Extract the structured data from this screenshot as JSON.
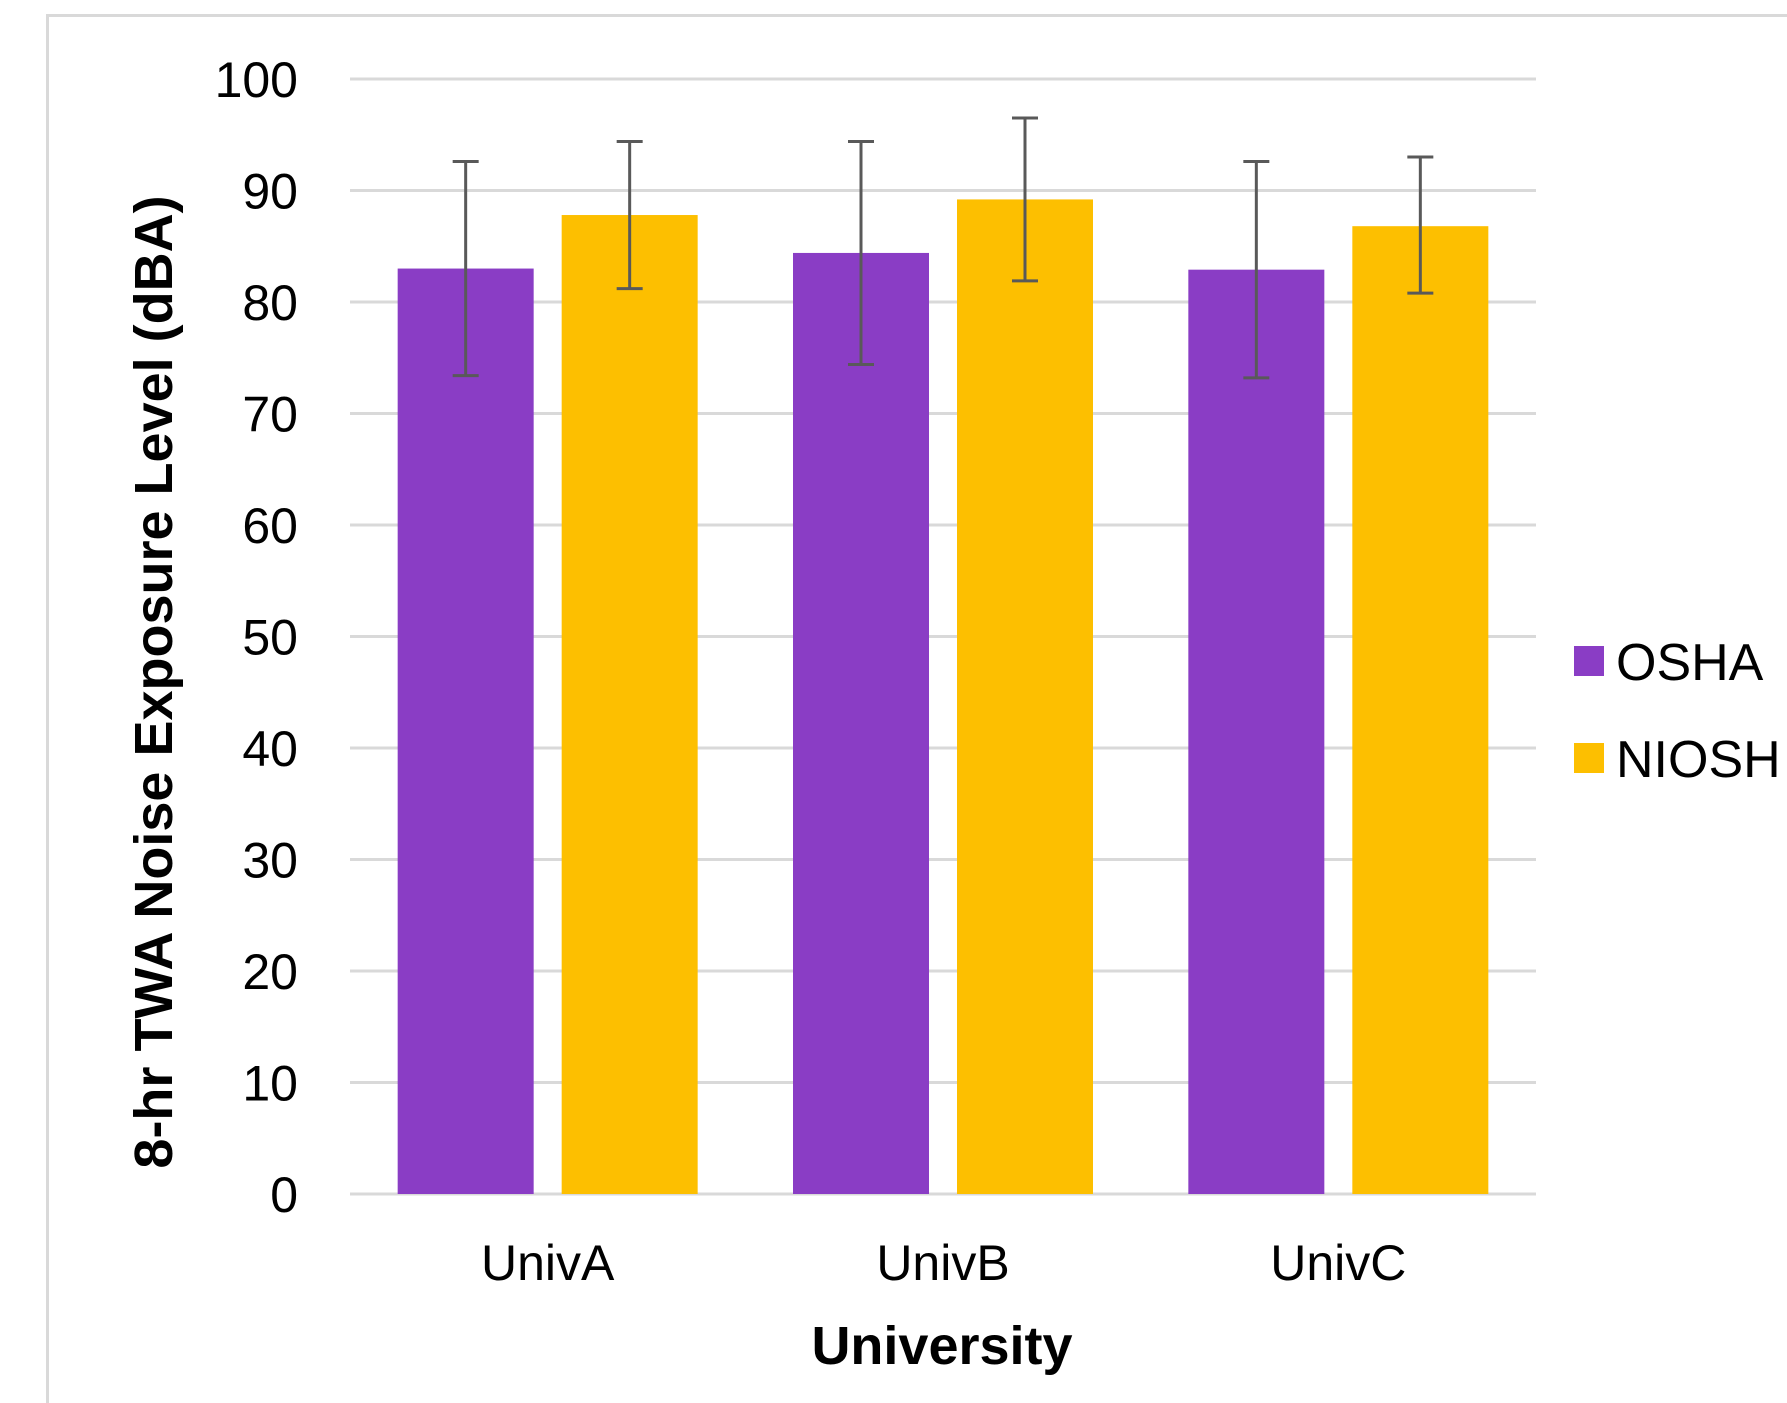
{
  "chart_data": {
    "type": "bar",
    "categories": [
      "UnivA",
      "UnivB",
      "UnivC"
    ],
    "series": [
      {
        "name": "OSHA",
        "color": "#8a3dc5",
        "values": [
          83.0,
          84.4,
          82.9
        ],
        "error_low": [
          73.4,
          74.4,
          73.2
        ],
        "error_high": [
          92.6,
          94.4,
          92.6
        ]
      },
      {
        "name": "NIOSH",
        "color": "#fdbf00",
        "values": [
          87.8,
          89.2,
          86.8
        ],
        "error_low": [
          81.2,
          81.9,
          80.8
        ],
        "error_high": [
          94.4,
          96.5,
          93.0
        ]
      }
    ],
    "xlabel": "University",
    "ylabel": "8-hr TWA Noise Exposure Level (dBA)",
    "ylim": [
      0,
      100
    ],
    "yticks": [
      "0",
      "10",
      "20",
      "30",
      "40",
      "50",
      "60",
      "70",
      "80",
      "90",
      "100"
    ],
    "grid": true,
    "gridColor": "#d9d9d9",
    "errorBarColor": "#595959",
    "legend_position": "right"
  }
}
